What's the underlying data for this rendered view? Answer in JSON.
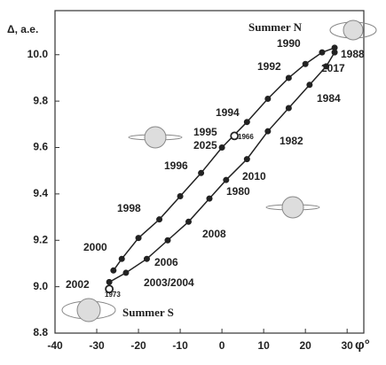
{
  "chart_data": {
    "type": "line",
    "y_label": "Δ, а.е.",
    "x_label": "φ°",
    "xlim": [
      -40,
      34
    ],
    "ylim": [
      8.8,
      10.19
    ],
    "xticks": [
      -40,
      -30,
      -20,
      -10,
      0,
      10,
      20,
      30
    ],
    "yticks": [
      8.8,
      {
        "value": 9,
        "label": "9.0"
      },
      9.2,
      9.4,
      9.6,
      9.8,
      {
        "value": 10,
        "label": "10.0"
      }
    ],
    "series": [
      {
        "color": "#222222",
        "x": [
          -26,
          -24,
          -20,
          -15,
          -10,
          -5,
          0,
          6,
          11,
          16,
          20,
          24,
          27
        ],
        "values": [
          9.07,
          9.12,
          9.21,
          9.29,
          9.39,
          9.49,
          9.6,
          9.71,
          9.81,
          9.9,
          9.96,
          10.01,
          10.03
        ]
      },
      {
        "color": "#222222",
        "x": [
          -27,
          -23,
          -18,
          -13,
          -8,
          -3,
          1,
          6,
          11,
          16,
          21,
          25,
          27
        ],
        "values": [
          9.02,
          9.06,
          9.12,
          9.2,
          9.28,
          9.38,
          9.46,
          9.55,
          9.67,
          9.77,
          9.87,
          9.95,
          10.01
        ]
      },
      {
        "color": "#222222",
        "marker": "open",
        "x": [
          -27,
          3
        ],
        "values": [
          8.99,
          9.65
        ]
      }
    ],
    "annotations": [
      "Summer N",
      "1990",
      "1988",
      "1992",
      "2017",
      "1984",
      "1994",
      "1995",
      "1966",
      "2025",
      "1982",
      "1996",
      "2010",
      "1980",
      "1998",
      "2008",
      "2000",
      "2006",
      "2002",
      "2003/2004",
      "1973",
      "Summer S"
    ]
  }
}
